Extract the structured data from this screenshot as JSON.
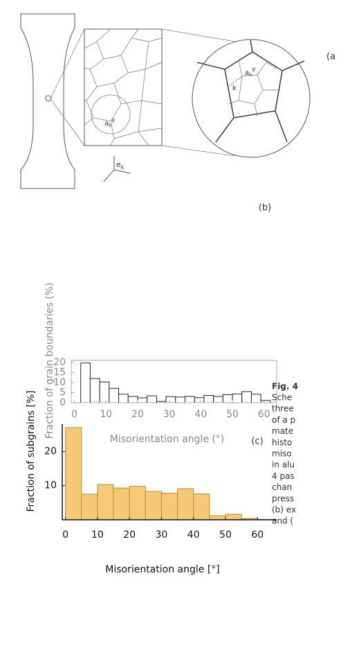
{
  "panel_a": {
    "label": "(a",
    "basis_vector": {
      "base": "e",
      "sub": "k"
    },
    "grain_label": {
      "base": "a",
      "sub": "k",
      "sup": "g"
    },
    "grain_label_zoom": {
      "base": "a",
      "sub": "k",
      "sup": "g'"
    },
    "zoom_k": "k"
  },
  "chart_data": [
    {
      "type": "histogram",
      "panel_label": "(b)",
      "ylabel": "Fraction of grain boundaries (%)",
      "xlabel": "Misorientation angle (°)",
      "bins": [
        2,
        5,
        8,
        11,
        14,
        17,
        20,
        23,
        26,
        29,
        32,
        35,
        38,
        41,
        44,
        47,
        50,
        53,
        56,
        59,
        62
      ],
      "values": [
        19.7,
        12,
        10.3,
        7.1,
        4.2,
        3.1,
        2.4,
        3.4,
        0.6,
        3,
        2.8,
        3.1,
        2.5,
        3.6,
        3.1,
        4,
        4.3,
        5.5,
        4.2,
        1.1
      ],
      "color": "#ffffff",
      "edgecolor": "#222222",
      "xlim": [
        -1,
        64
      ],
      "ylim": [
        0,
        21
      ],
      "xticks": [
        0,
        10,
        20,
        30,
        40,
        50,
        60
      ],
      "yticks": [
        0,
        5,
        10,
        15,
        20
      ],
      "frame": true
    },
    {
      "type": "histogram",
      "panel_label": "(c)",
      "ylabel": "Fraction of subgrains [%]",
      "xlabel": "Misorientation angle [°]",
      "bins": [
        0,
        5,
        10,
        15,
        20,
        25,
        30,
        35,
        40,
        45,
        50,
        55,
        60,
        65
      ],
      "values": [
        27,
        7.5,
        10.3,
        9.3,
        9.8,
        8.3,
        7.8,
        9.1,
        7.6,
        1.2,
        1.6,
        0.4,
        0.1
      ],
      "color": "#f6c978",
      "edgecolor": "#b8893a",
      "xlim": [
        -1,
        66
      ],
      "ylim": [
        0,
        28
      ],
      "xticks": [
        0,
        10,
        20,
        30,
        40,
        50,
        60
      ],
      "yticks": [
        10,
        20
      ],
      "frame": false
    }
  ],
  "caption": {
    "figure": "Fig. 4",
    "lines": [
      "Sche",
      "three",
      "of a p",
      "mate",
      "histo",
      "miso",
      "in alu",
      "4 pas",
      "chan",
      "press",
      "(b) ex",
      "and ("
    ]
  }
}
